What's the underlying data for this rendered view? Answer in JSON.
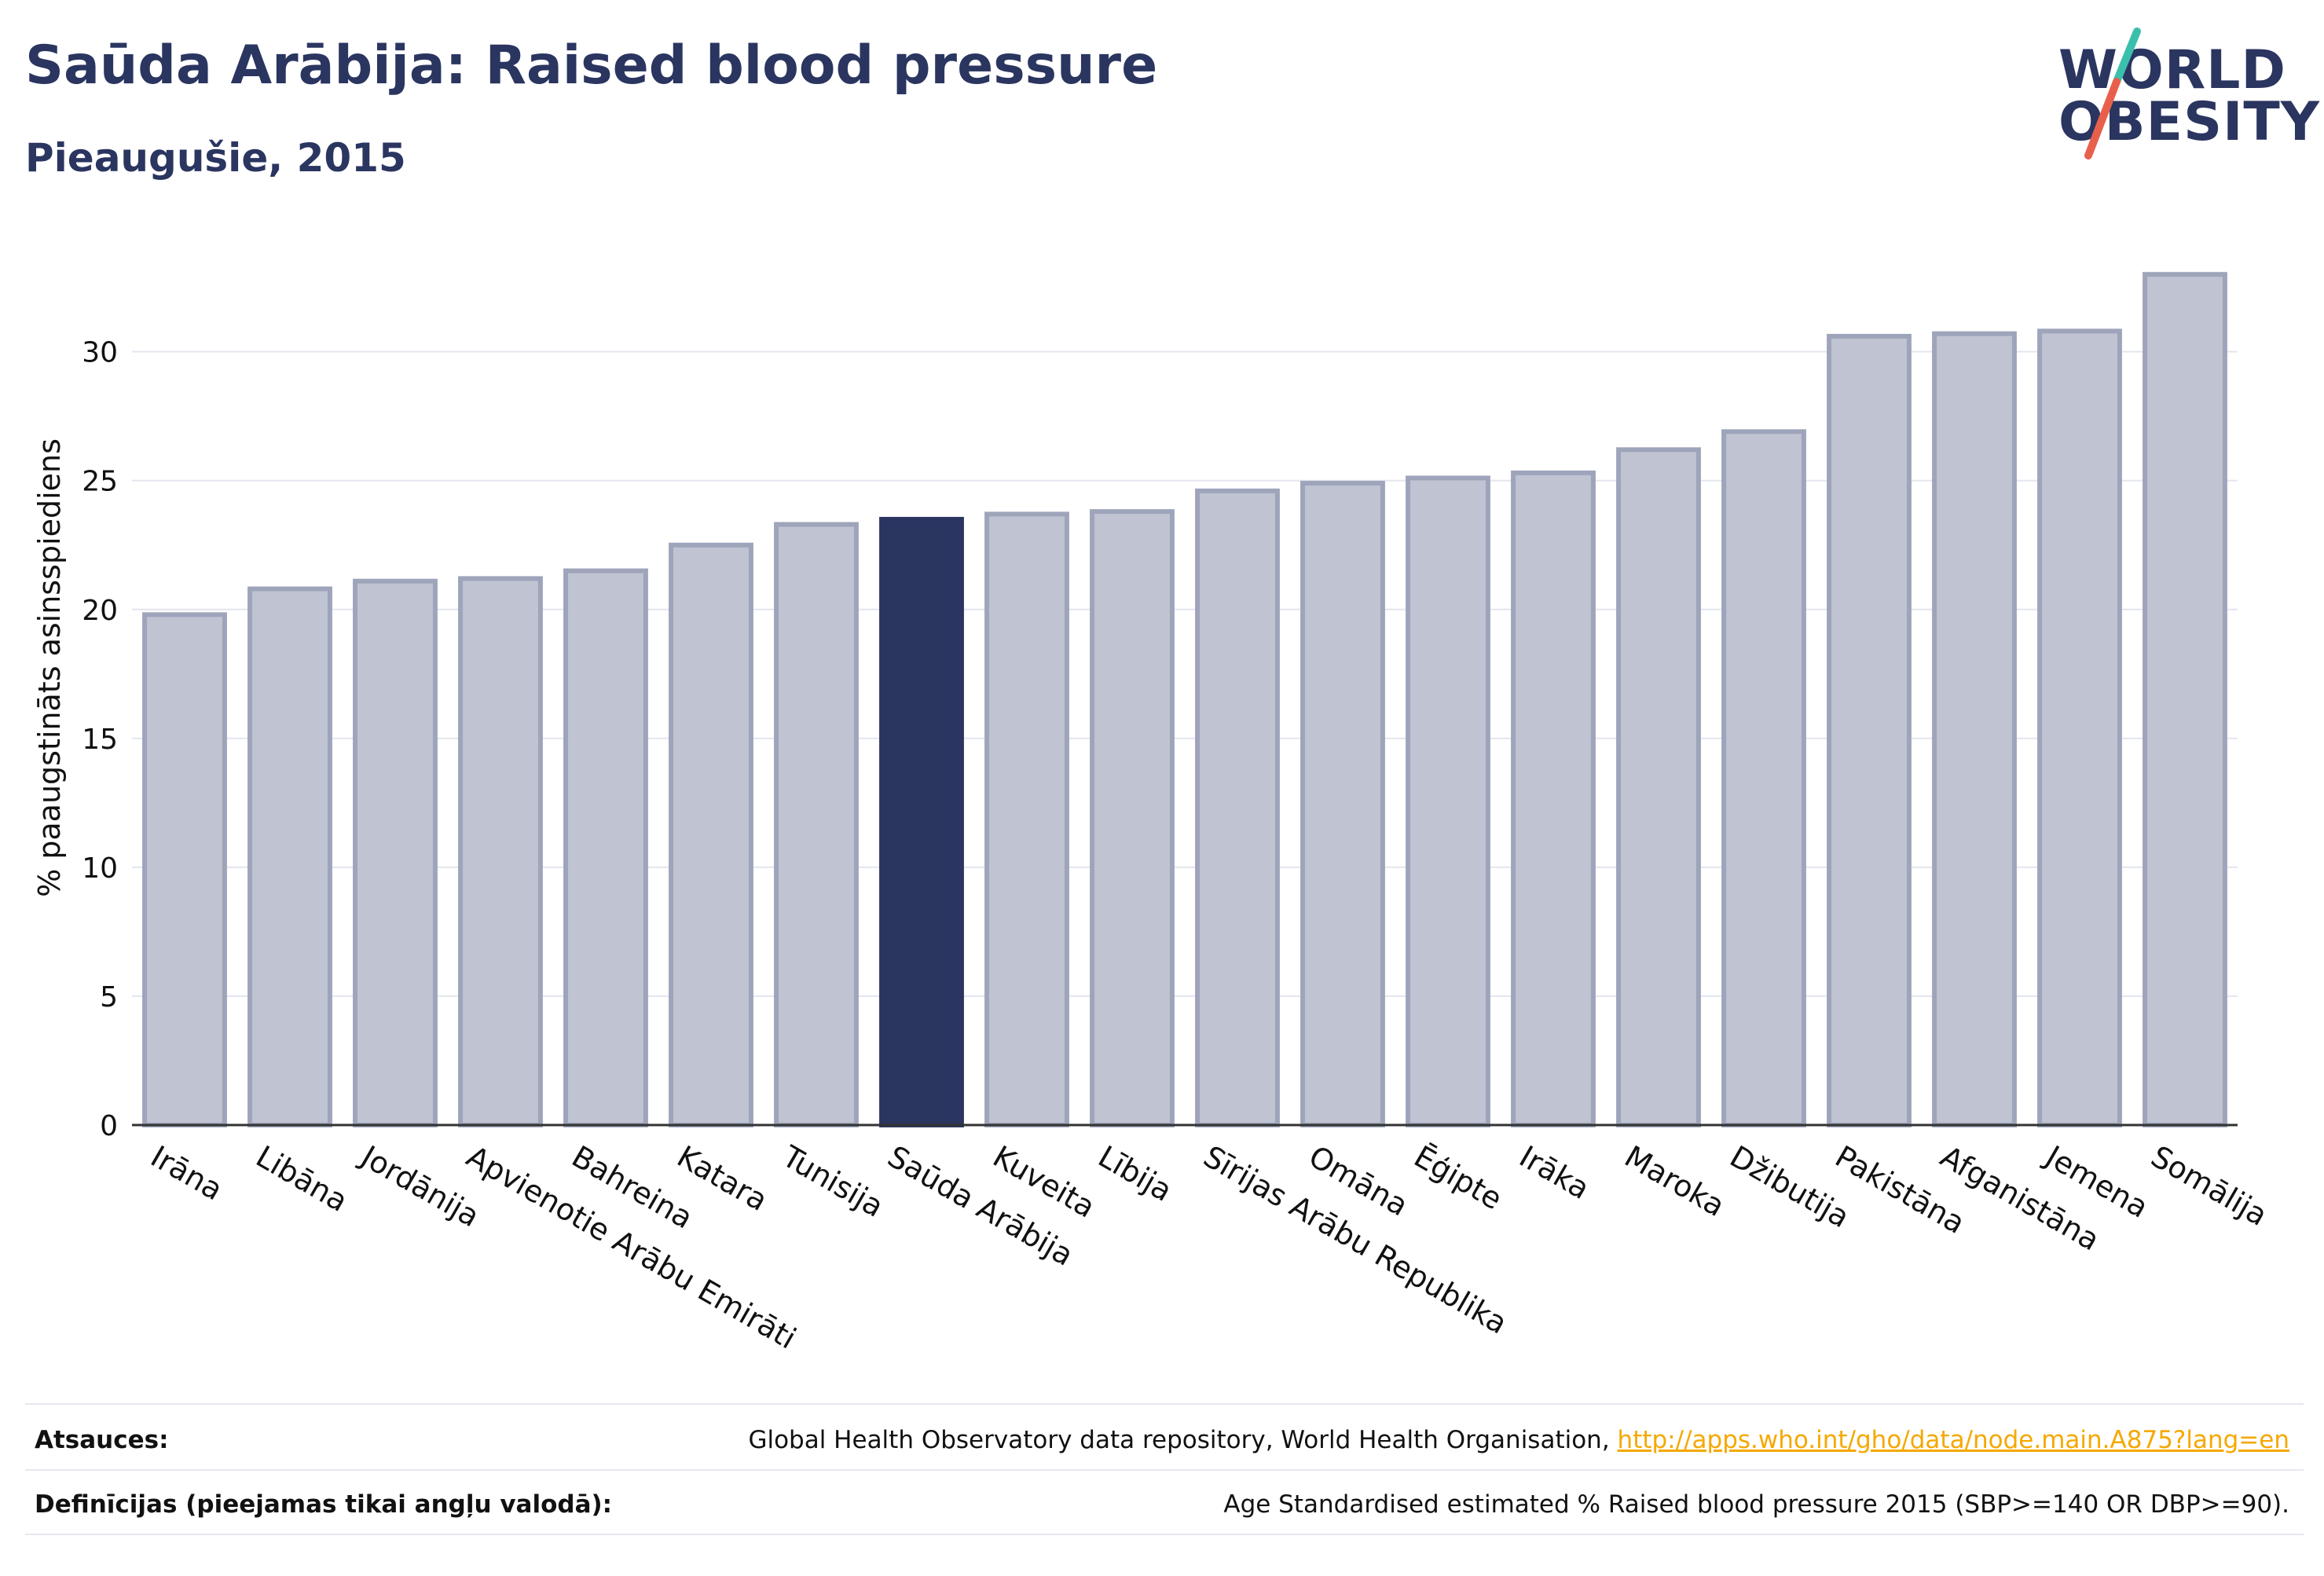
{
  "header": {
    "title": "Saūda Arābija: Raised blood pressure",
    "subtitle": "Pieaugušie, 2015"
  },
  "logo": {
    "line1": "WORLD",
    "line2": "OBESITY",
    "colors": {
      "text": "#2a3560",
      "slash_top": "#3bbfad",
      "slash_bottom": "#e8604c"
    }
  },
  "chart_data": {
    "type": "bar",
    "ylabel": "% paaugstināts asinsspiediens",
    "ylim": [
      0,
      34.5
    ],
    "yticks": [
      0,
      5,
      10,
      15,
      20,
      25,
      30
    ],
    "grid": true,
    "highlight": "Saūda Arābija",
    "colors": {
      "bar": "#c0c4d2",
      "bar_edge": "#9ea4ba",
      "highlight": "#2a3560",
      "grid": "#e4e6ee",
      "axis": "#333333"
    },
    "categories": [
      "Irāna",
      "Libāna",
      "Jordānija",
      "Apvienotie Arābu Emirāti",
      "Bahreina",
      "Katara",
      "Tunisija",
      "Saūda Arābija",
      "Kuveita",
      "Lībija",
      "Sīrijas Arābu Republika",
      "Omāna",
      "Ēģipte",
      "Irāka",
      "Maroka",
      "Džibutija",
      "Pakistāna",
      "Afganistāna",
      "Jemena",
      "Somālija"
    ],
    "values": [
      19.8,
      20.8,
      21.1,
      21.2,
      21.5,
      22.5,
      23.3,
      23.5,
      23.7,
      23.8,
      24.6,
      24.9,
      25.1,
      25.3,
      26.2,
      26.9,
      30.6,
      30.7,
      30.8,
      33.0
    ]
  },
  "footer": {
    "sources_label": "Atsauces:",
    "sources_text": "Global Health Observatory data repository, World Health Organisation, ",
    "sources_link": "http://apps.who.int/gho/data/node.main.A875?lang=en",
    "definitions_label": "Definīcijas (pieejamas tikai angļu valodā):",
    "definitions_text": "Age Standardised estimated % Raised blood pressure 2015 (SBP>=140 OR DBP>=90)."
  }
}
